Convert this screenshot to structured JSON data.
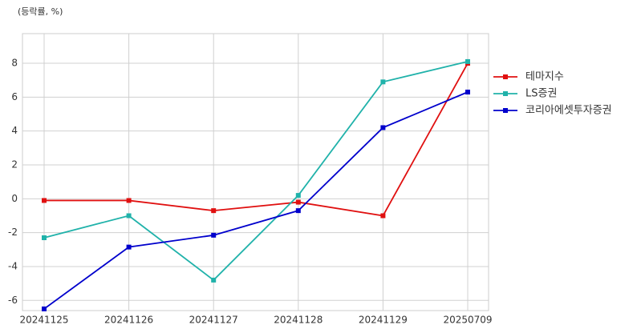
{
  "chart_data": {
    "type": "line",
    "y_axis_label": "(등락률, %)",
    "categories": [
      "20241125",
      "20241126",
      "20241127",
      "20241128",
      "20241129",
      "20250709"
    ],
    "series": [
      {
        "name": "테마지수",
        "color": "#e01010",
        "values": [
          -0.1,
          -0.1,
          -0.7,
          -0.2,
          -1.0,
          8.0
        ]
      },
      {
        "name": "LS증권",
        "color": "#20b2aa",
        "values": [
          -2.3,
          -1.0,
          -4.8,
          0.2,
          6.9,
          8.1
        ]
      },
      {
        "name": "코리아에셋투자증권",
        "color": "#0000cc",
        "values": [
          -6.5,
          -2.85,
          -2.15,
          -0.7,
          4.2,
          6.3
        ]
      }
    ],
    "ylim": [
      -6.6,
      9.75
    ],
    "yticks": [
      -6,
      -4,
      -2,
      0,
      2,
      4,
      6,
      8
    ],
    "grid": true,
    "legend": "right"
  }
}
